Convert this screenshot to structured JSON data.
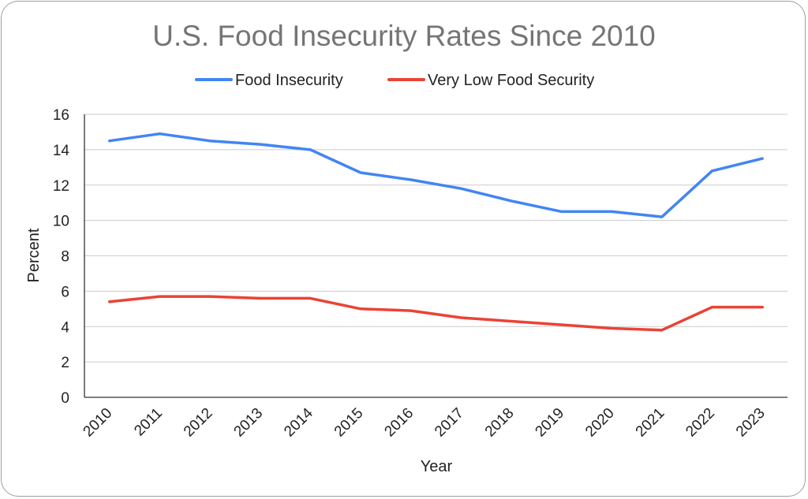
{
  "chart_data": {
    "type": "line",
    "title": "U.S. Food Insecurity Rates Since 2010",
    "xlabel": "Year",
    "ylabel": "Percent",
    "categories": [
      "2010",
      "2011",
      "2012",
      "2013",
      "2014",
      "2015",
      "2016",
      "2017",
      "2018",
      "2019",
      "2020",
      "2021",
      "2022",
      "2023"
    ],
    "ylim": [
      0,
      16
    ],
    "yticks": [
      0,
      2,
      4,
      6,
      8,
      10,
      12,
      14,
      16
    ],
    "grid": true,
    "legend_position": "top-center",
    "series": [
      {
        "name": "Food Insecurity",
        "color": "#4285f4",
        "values": [
          14.5,
          14.9,
          14.5,
          14.3,
          14.0,
          12.7,
          12.3,
          11.8,
          11.1,
          10.5,
          10.5,
          10.2,
          12.8,
          13.5
        ]
      },
      {
        "name": "Very Low Food Security",
        "color": "#ea4335",
        "values": [
          5.4,
          5.7,
          5.7,
          5.6,
          5.6,
          5.0,
          4.9,
          4.5,
          4.3,
          4.1,
          3.9,
          3.8,
          5.1,
          5.1
        ]
      }
    ]
  }
}
